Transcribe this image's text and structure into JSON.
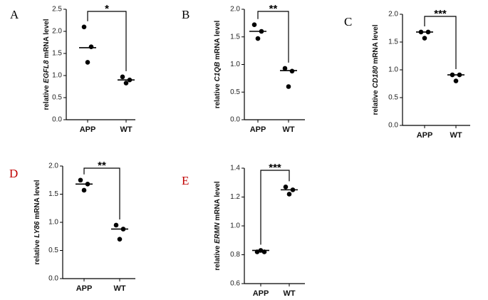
{
  "chart_data": [
    {
      "type": "dot",
      "panel_label": "A",
      "panel_label_color": "#000000",
      "ylabel_prefix": "relative ",
      "ylabel_gene": "EGFL8",
      "ylabel_suffix": " mRNA level",
      "categories": [
        "APP",
        "WT"
      ],
      "points": [
        [
          2.1,
          1.65,
          1.3
        ],
        [
          0.97,
          0.9,
          0.83
        ]
      ],
      "means": [
        1.63,
        0.9
      ],
      "significance": "*",
      "color": "#000000",
      "ylim": [
        0,
        2.5
      ],
      "yticks": [
        {
          "value": 0,
          "label": "0.0"
        },
        0.5,
        {
          "value": 1,
          "label": "1.0"
        },
        1.5,
        {
          "value": 2,
          "label": "2.0"
        },
        2.5
      ]
    },
    {
      "type": "dot",
      "panel_label": "B",
      "panel_label_color": "#000000",
      "ylabel_prefix": "relative ",
      "ylabel_gene": "C1QB",
      "ylabel_suffix": " mRNA level",
      "categories": [
        "APP",
        "WT"
      ],
      "points": [
        [
          1.72,
          1.6,
          1.47
        ],
        [
          0.93,
          0.88,
          0.6
        ]
      ],
      "means": [
        1.6,
        0.89
      ],
      "significance": "**",
      "color": "#000000",
      "ylim": [
        0,
        2
      ],
      "yticks": [
        {
          "value": 0,
          "label": "0.0"
        },
        0.5,
        {
          "value": 1,
          "label": "1.0"
        },
        1.5,
        {
          "value": 2,
          "label": "2.0"
        }
      ]
    },
    {
      "type": "dot",
      "panel_label": "C",
      "panel_label_color": "#000000",
      "ylabel_prefix": "relative ",
      "ylabel_gene": "CD180",
      "ylabel_suffix": " mRNA level",
      "categories": [
        "APP",
        "WT"
      ],
      "points": [
        [
          1.68,
          1.68,
          1.57
        ],
        [
          0.91,
          0.91,
          0.8
        ]
      ],
      "means": [
        1.68,
        0.91
      ],
      "significance": "***",
      "color": "#000000",
      "ylim": [
        0,
        2
      ],
      "yticks": [
        {
          "value": 0,
          "label": "0.0"
        },
        0.5,
        {
          "value": 1,
          "label": "1.0"
        },
        1.5,
        {
          "value": 2,
          "label": "2.0"
        }
      ]
    },
    {
      "type": "dot",
      "panel_label": "D",
      "panel_label_color": "#c00000",
      "ylabel_prefix": "relative ",
      "ylabel_gene": "LY86",
      "ylabel_suffix": " mRNA level",
      "categories": [
        "APP",
        "WT"
      ],
      "points": [
        [
          1.75,
          1.68,
          1.57
        ],
        [
          0.95,
          0.88,
          0.7
        ]
      ],
      "means": [
        1.68,
        0.88
      ],
      "significance": "**",
      "color": "#000000",
      "ylim": [
        0,
        2
      ],
      "yticks": [
        {
          "value": 0,
          "label": "0.0"
        },
        0.5,
        {
          "value": 1,
          "label": "1.0"
        },
        1.5,
        {
          "value": 2,
          "label": "2.0"
        }
      ]
    },
    {
      "type": "dot",
      "panel_label": "E",
      "panel_label_color": "#c00000",
      "ylabel_prefix": "relative ",
      "ylabel_gene": "ERMN",
      "ylabel_suffix": " mRNA level",
      "categories": [
        "APP",
        "WT"
      ],
      "points": [
        [
          0.82,
          0.82,
          0.83
        ],
        [
          1.27,
          1.25,
          1.22
        ]
      ],
      "means": [
        0.83,
        1.25
      ],
      "significance": "***",
      "color": "#000000",
      "ylim": [
        0.6,
        1.4
      ],
      "yticks": [
        0.6,
        0.8,
        {
          "value": 1,
          "label": "1.0"
        },
        1.2,
        1.4
      ]
    }
  ]
}
